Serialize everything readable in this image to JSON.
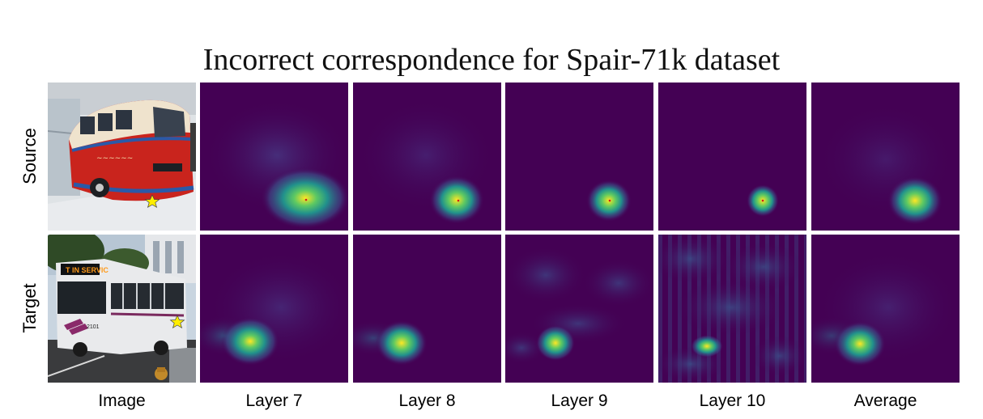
{
  "figure": {
    "title": "Incorrect correspondence for Spair-71k dataset",
    "rows": [
      {
        "key": "source",
        "label": "Source"
      },
      {
        "key": "target",
        "label": "Target"
      }
    ],
    "columns": [
      {
        "key": "image",
        "label": "Image"
      },
      {
        "key": "layer7",
        "label": "Layer 7"
      },
      {
        "key": "layer8",
        "label": "Layer 8"
      },
      {
        "key": "layer9",
        "label": "Layer 9"
      },
      {
        "key": "layer10",
        "label": "Layer 10"
      },
      {
        "key": "average",
        "label": "Average"
      }
    ],
    "source_image": {
      "sign_text": ""
    },
    "target_image": {
      "destination_sign": "T IN SERVIC",
      "bus_number": "2101"
    },
    "colormap": [
      "#440154",
      "#3b528b",
      "#21918c",
      "#5ec962",
      "#fde725"
    ],
    "keypoint_marker": {
      "shape": "star",
      "color": "#ffee00"
    }
  }
}
